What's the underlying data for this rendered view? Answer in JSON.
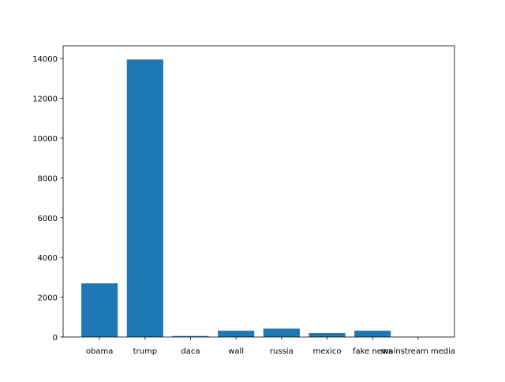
{
  "chart_data": {
    "type": "bar",
    "title": "",
    "xlabel": "",
    "ylabel": "",
    "categories": [
      "obama",
      "trump",
      "daca",
      "wall",
      "russia",
      "mexico",
      "fake news",
      "mainstream media"
    ],
    "values": [
      2700,
      13950,
      50,
      320,
      420,
      200,
      320,
      5
    ],
    "ylim": [
      0,
      14640
    ],
    "yticks": [
      0,
      2000,
      4000,
      6000,
      8000,
      10000,
      12000,
      14000
    ],
    "grid": false,
    "legend": "none",
    "bar_color": "#1f77b4"
  }
}
